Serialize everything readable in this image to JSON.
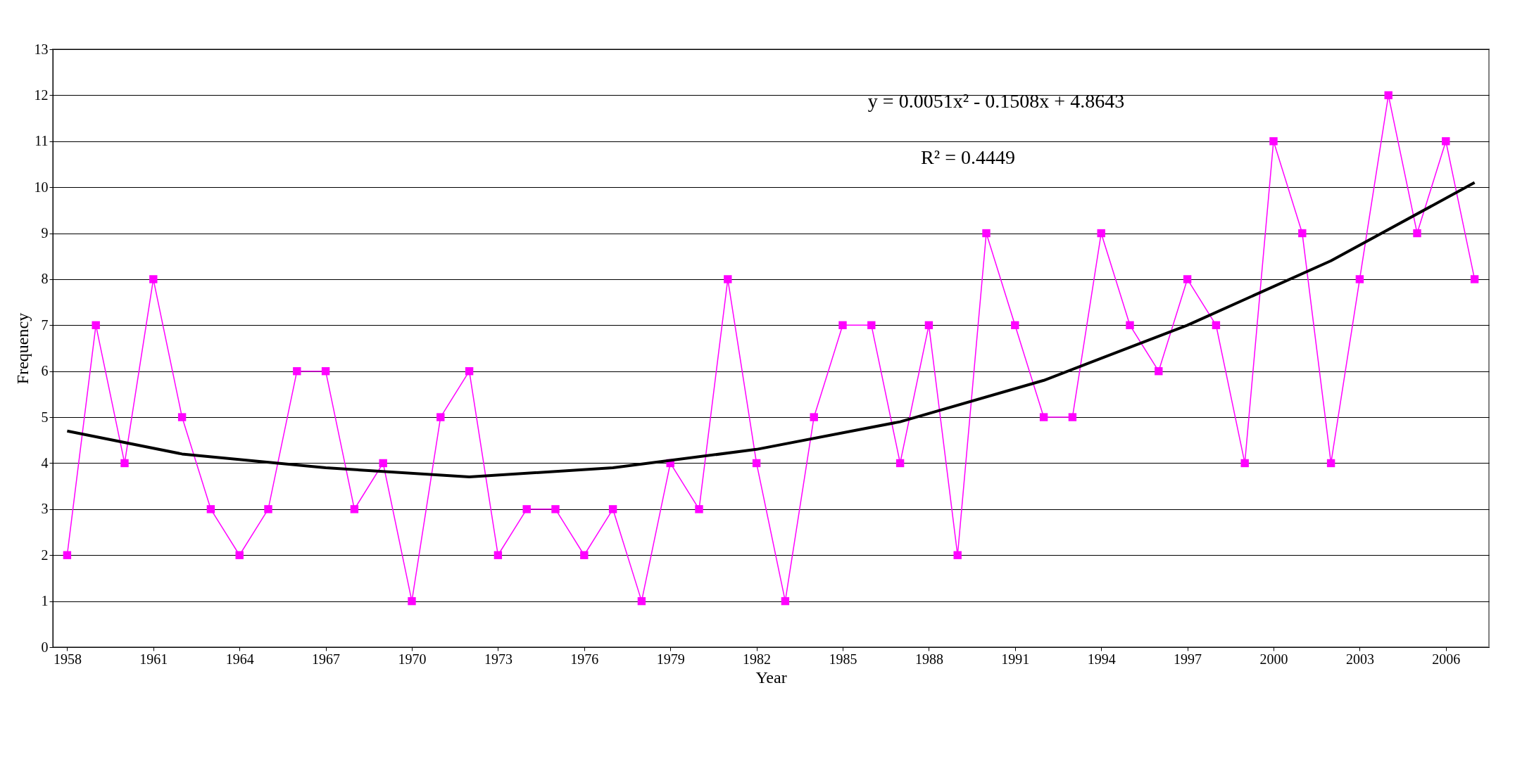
{
  "chart_data": {
    "type": "line",
    "xlabel": "Year",
    "ylabel": "Frequency",
    "x": [
      1958,
      1959,
      1960,
      1961,
      1962,
      1963,
      1964,
      1965,
      1966,
      1967,
      1968,
      1969,
      1970,
      1971,
      1972,
      1973,
      1974,
      1975,
      1976,
      1977,
      1978,
      1979,
      1980,
      1981,
      1982,
      1983,
      1984,
      1985,
      1986,
      1987,
      1988,
      1989,
      1990,
      1991,
      1992,
      1993,
      1994,
      1995,
      1996,
      1997,
      1998,
      1999,
      2000,
      2001,
      2002,
      2003,
      2004,
      2005,
      2006,
      2007
    ],
    "series": [
      {
        "color": "#ff00ff",
        "values": [
          2,
          7,
          4,
          8,
          5,
          3,
          2,
          3,
          6,
          6,
          3,
          4,
          1,
          5,
          6,
          2,
          3,
          3,
          2,
          3,
          1,
          4,
          3,
          8,
          4,
          1,
          5,
          7,
          7,
          4,
          7,
          2,
          9,
          7,
          5,
          5,
          9,
          7,
          6,
          8,
          7,
          4,
          11,
          9,
          4,
          8,
          12,
          9,
          11,
          8
        ]
      },
      {
        "type": "line",
        "color": "#000000",
        "marker": "none",
        "x": [
          1958,
          1962,
          1967,
          1972,
          1977,
          1982,
          1987,
          1992,
          1997,
          2002,
          2007
        ],
        "values": [
          4.7,
          4.2,
          3.9,
          3.7,
          3.9,
          4.3,
          4.9,
          5.8,
          7.0,
          8.4,
          10.1
        ]
      }
    ],
    "xlim": [
      1957.5,
      2007.5
    ],
    "xticks": [
      1958,
      1961,
      1964,
      1967,
      1970,
      1973,
      1976,
      1979,
      1982,
      1985,
      1988,
      1991,
      1994,
      1997,
      2000,
      2003,
      2006
    ],
    "ylim": [
      0,
      13
    ],
    "yticks": [
      0,
      1,
      2,
      3,
      4,
      5,
      6,
      7,
      8,
      9,
      10,
      11,
      12,
      13
    ],
    "grid": "y",
    "marker": "square",
    "line_style": "solid",
    "annotations": [
      "y = 0.0051x² - 0.1508x + 4.8643",
      "R² = 0.4449"
    ]
  }
}
